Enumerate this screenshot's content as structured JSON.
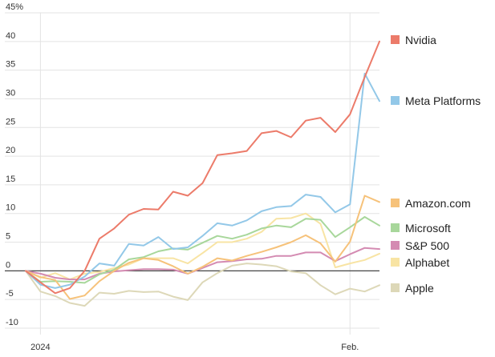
{
  "chart_data": {
    "type": "line",
    "title": "",
    "xlabel": "",
    "ylabel": "",
    "ylim": [
      -10,
      45
    ],
    "y_ticks": [
      {
        "value": 45,
        "label": "45%"
      },
      {
        "value": 40,
        "label": "40"
      },
      {
        "value": 35,
        "label": "35"
      },
      {
        "value": 30,
        "label": "30"
      },
      {
        "value": 25,
        "label": "25"
      },
      {
        "value": 20,
        "label": "20"
      },
      {
        "value": 15,
        "label": "15"
      },
      {
        "value": 10,
        "label": "10"
      },
      {
        "value": 5,
        "label": "5"
      },
      {
        "value": 0,
        "label": "0"
      },
      {
        "value": -5,
        "label": "-5"
      },
      {
        "value": -10,
        "label": "-10"
      }
    ],
    "x_ticks": [
      {
        "index": 1,
        "label": "2024"
      },
      {
        "index": 22,
        "label": "Feb."
      }
    ],
    "grid": true,
    "legend": "right",
    "series": [
      {
        "name": "Nvidia",
        "color": "#ec7b6a",
        "values": [
          0,
          -2,
          -3.9,
          -3,
          0,
          5.6,
          7.4,
          9.8,
          10.8,
          10.7,
          13.8,
          13.1,
          15.3,
          20.2,
          20.5,
          20.9,
          24,
          24.4,
          23.3,
          26.2,
          26.7,
          24.2,
          27.3,
          33.8,
          40
        ]
      },
      {
        "name": "Meta Platforms",
        "color": "#93c8e8",
        "values": [
          0,
          -2.4,
          -3,
          -2.4,
          -1,
          1.3,
          0.9,
          4.7,
          4.4,
          5.9,
          3.8,
          4.1,
          6.1,
          8.3,
          7.9,
          8.8,
          10.4,
          11.1,
          11.3,
          13.3,
          12.9,
          10.2,
          11.6,
          34.4,
          29.6
        ]
      },
      {
        "name": "Amazon.com",
        "color": "#f6c27a",
        "values": [
          0,
          -1.1,
          -1.6,
          -4.9,
          -4.3,
          -1.8,
          0,
          1.4,
          2.2,
          1.9,
          0.8,
          -0.5,
          0.7,
          2.2,
          1.8,
          2.6,
          3.3,
          4.1,
          5,
          6.2,
          4.8,
          1.6,
          5.1,
          13.1,
          12
        ]
      },
      {
        "name": "Microsoft",
        "color": "#a8d79b",
        "values": [
          0,
          -1.9,
          -1.8,
          -1.9,
          -2.1,
          -0.6,
          0.2,
          2,
          2.4,
          3.4,
          3.9,
          3.7,
          4.9,
          6.1,
          5.6,
          6.3,
          7.4,
          7.9,
          7.6,
          9.1,
          8.9,
          5.9,
          7.6,
          9.4,
          7.9
        ]
      },
      {
        "name": "S&P 500",
        "color": "#d48bb2",
        "values": [
          0,
          -0.5,
          -1.2,
          -1.5,
          -1.5,
          -0.5,
          -0.1,
          0.1,
          0.3,
          0.3,
          0.2,
          -0.5,
          0.5,
          1.5,
          1.7,
          2,
          2.1,
          2.6,
          2.6,
          3.2,
          3.2,
          1.7,
          2.9,
          4,
          3.8
        ]
      },
      {
        "name": "Alphabet",
        "color": "#f8e4a4",
        "values": [
          0,
          -1.2,
          -0.4,
          -1.5,
          -0.5,
          -0.2,
          0.5,
          1.1,
          2.2,
          2.2,
          2.2,
          1.3,
          3.1,
          5,
          5,
          5.6,
          6.8,
          9.1,
          9.2,
          10,
          8.2,
          0.6,
          1.3,
          1.9,
          3
        ]
      },
      {
        "name": "Apple",
        "color": "#ddd8b8",
        "values": [
          0,
          -3.6,
          -4.4,
          -5.6,
          -6.1,
          -3.8,
          -4,
          -3.5,
          -3.7,
          -3.6,
          -4.5,
          -5.1,
          -2,
          -0.4,
          0.9,
          1.3,
          1.1,
          0.8,
          -0.1,
          -0.4,
          -2.5,
          -4.1,
          -3.1,
          -3.6,
          -2.5
        ]
      }
    ]
  }
}
